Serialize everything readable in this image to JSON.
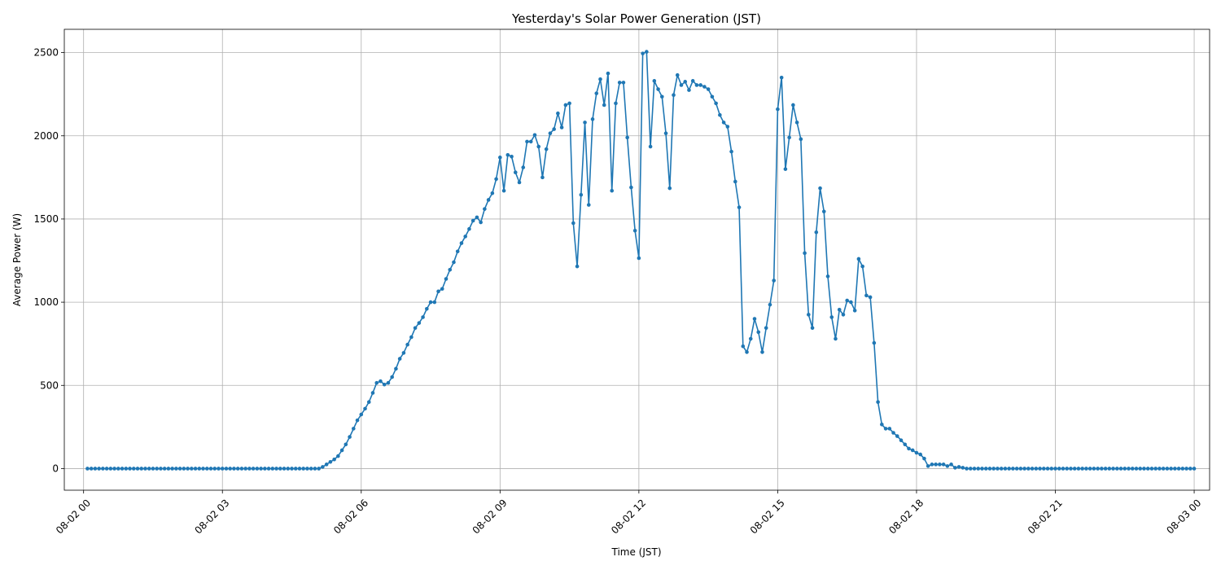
{
  "chart_data": {
    "type": "line",
    "title": "Yesterday's Solar Power Generation (JST)",
    "xlabel": "Time (JST)",
    "ylabel": "Average Power (W)",
    "x_start": "08-02 00:05",
    "interval_minutes": 5,
    "xlim": [
      "08-01 23:35",
      "08-03 00:20"
    ],
    "ylim": [
      -130,
      2640
    ],
    "x_ticks": [
      {
        "label": "08-02 00",
        "hour": 0
      },
      {
        "label": "08-02 03",
        "hour": 3
      },
      {
        "label": "08-02 06",
        "hour": 6
      },
      {
        "label": "08-02 09",
        "hour": 9
      },
      {
        "label": "08-02 12",
        "hour": 12
      },
      {
        "label": "08-02 15",
        "hour": 15
      },
      {
        "label": "08-02 18",
        "hour": 18
      },
      {
        "label": "08-02 21",
        "hour": 21
      },
      {
        "label": "08-03 00",
        "hour": 24
      }
    ],
    "y_ticks": [
      0,
      500,
      1000,
      1500,
      2000,
      2500
    ],
    "grid": true,
    "color": "#1f77b4",
    "series": [
      {
        "values": [
          0,
          0,
          0,
          0,
          0,
          0,
          0,
          0,
          0,
          0,
          0,
          0,
          0,
          0,
          0,
          0,
          0,
          0,
          0,
          0,
          0,
          0,
          0,
          0,
          0,
          0,
          0,
          0,
          0,
          0,
          0,
          0,
          0,
          0,
          0,
          0,
          0,
          0,
          0,
          0,
          0,
          0,
          0,
          0,
          0,
          0,
          0,
          0,
          0,
          0,
          0,
          0,
          0,
          0,
          0,
          0,
          0,
          0,
          0,
          0,
          0,
          10,
          25,
          40,
          55,
          75,
          110,
          145,
          190,
          240,
          290,
          325,
          360,
          400,
          455,
          515,
          525,
          505,
          515,
          550,
          600,
          660,
          695,
          745,
          790,
          845,
          875,
          910,
          960,
          1000,
          1000,
          1065,
          1080,
          1140,
          1195,
          1240,
          1305,
          1355,
          1395,
          1440,
          1490,
          1510,
          1480,
          1560,
          1615,
          1655,
          1740,
          1870,
          1670,
          1885,
          1875,
          1780,
          1720,
          1810,
          1965,
          1965,
          2005,
          1935,
          1750,
          1920,
          2015,
          2040,
          2135,
          2050,
          2185,
          2195,
          1475,
          1215,
          1645,
          2080,
          1585,
          2100,
          2255,
          2340,
          2185,
          2375,
          1670,
          2195,
          2320,
          2320,
          1990,
          1690,
          1430,
          1265,
          2495,
          2505,
          1935,
          2330,
          2280,
          2235,
          2015,
          1685,
          2245,
          2365,
          2305,
          2325,
          2275,
          2330,
          2305,
          2305,
          2295,
          2280,
          2235,
          2195,
          2125,
          2080,
          2055,
          1905,
          1725,
          1570,
          735,
          700,
          780,
          900,
          820,
          700,
          845,
          985,
          1130,
          2160,
          2350,
          1800,
          1990,
          2185,
          2080,
          1980,
          1295,
          925,
          845,
          1420,
          1685,
          1545,
          1155,
          910,
          780,
          955,
          925,
          1010,
          1000,
          950,
          1260,
          1215,
          1040,
          1030,
          755,
          400,
          265,
          240,
          240,
          215,
          195,
          170,
          145,
          120,
          110,
          95,
          85,
          60,
          15,
          25,
          25,
          25,
          25,
          15,
          25,
          5,
          10,
          5,
          0,
          0,
          0,
          0,
          0,
          0,
          0,
          0,
          0,
          0,
          0,
          0,
          0,
          0,
          0,
          0,
          0,
          0,
          0,
          0,
          0,
          0,
          0,
          0,
          0,
          0,
          0,
          0,
          0,
          0,
          0,
          0,
          0,
          0,
          0,
          0,
          0,
          0,
          0,
          0,
          0,
          0,
          0,
          0,
          0,
          0,
          0,
          0,
          0,
          0,
          0,
          0,
          0,
          0,
          0,
          0,
          0,
          0,
          0,
          0
        ]
      }
    ]
  }
}
